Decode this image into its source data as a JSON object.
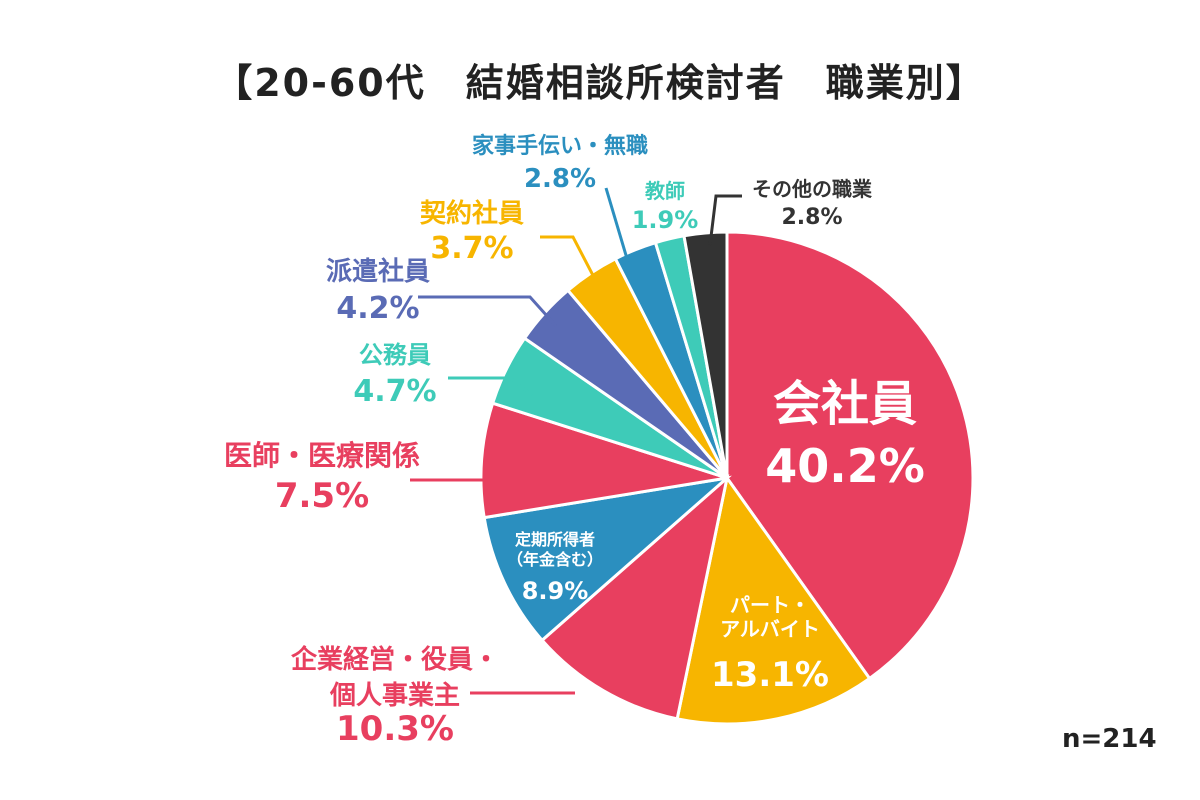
{
  "title": "【20-60代　結婚相談所検討者　職業別】",
  "footnote": "n=214",
  "chart_data": {
    "type": "pie",
    "title": "【20-60代　結婚相談所検討者　職業別】",
    "start": "12 o'clock, clockwise",
    "slices": [
      {
        "name": "会社員",
        "lines": [
          "会社員"
        ],
        "value": 40.2,
        "color": "#e83f5f"
      },
      {
        "name": "パート・アルバイト",
        "lines": [
          "パート・",
          "アルバイト"
        ],
        "value": 13.1,
        "color": "#f7b500"
      },
      {
        "name": "企業経営・役員・個人事業主",
        "lines": [
          "企業経営・役員・",
          "個人事業主"
        ],
        "value": 10.3,
        "color": "#e83f5f"
      },
      {
        "name": "定期所得者（年金含む）",
        "lines": [
          "定期所得者",
          "（年金含む）"
        ],
        "value": 8.9,
        "color": "#2b8fbf"
      },
      {
        "name": "医師・医療関係",
        "lines": [
          "医師・医療関係"
        ],
        "value": 7.5,
        "color": "#e83f5f"
      },
      {
        "name": "公務員",
        "lines": [
          "公務員"
        ],
        "value": 4.7,
        "color": "#3ecbb8"
      },
      {
        "name": "派遣社員",
        "lines": [
          "派遣社員"
        ],
        "value": 4.2,
        "color": "#5a6bb5"
      },
      {
        "name": "契約社員",
        "lines": [
          "契約社員"
        ],
        "value": 3.7,
        "color": "#f7b500"
      },
      {
        "name": "家事手伝い・無職",
        "lines": [
          "家事手伝い・無職"
        ],
        "value": 2.8,
        "color": "#2b8fbf"
      },
      {
        "name": "教師",
        "lines": [
          "教師"
        ],
        "value": 1.9,
        "color": "#3ecbb8"
      },
      {
        "name": "その他の職業",
        "lines": [
          "その他の職業"
        ],
        "value": 2.8,
        "color": "#333333"
      }
    ],
    "value_suffix": "%"
  }
}
